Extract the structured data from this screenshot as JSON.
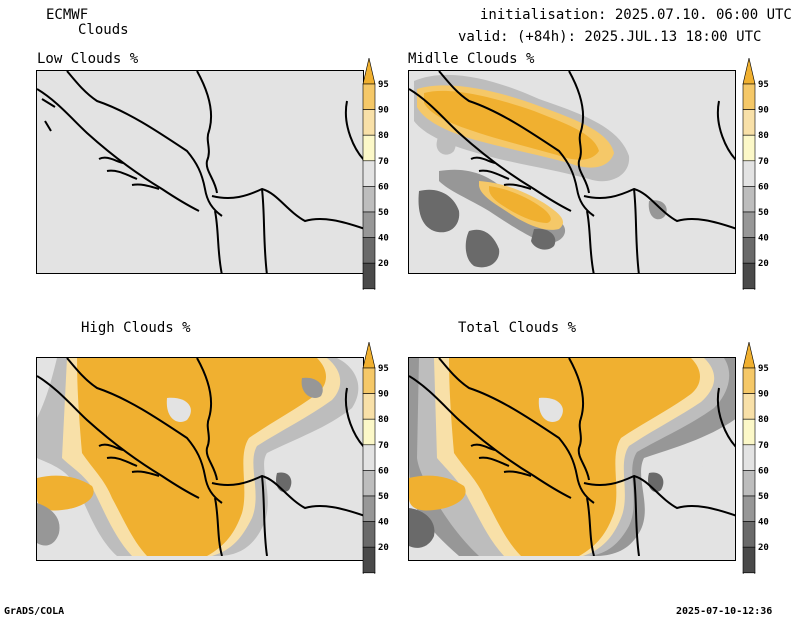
{
  "header": {
    "model": "ECMWF",
    "product": "Clouds",
    "init_line": "initialisation: 2025.07.10. 06:00 UTC",
    "valid_line": "valid: (+84h): 2025.JUL.13 18:00 UTC"
  },
  "panels": [
    {
      "title": "Low Clouds %"
    },
    {
      "title": "Midlle Clouds %"
    },
    {
      "title": "High Clouds %"
    },
    {
      "title": "Total Clouds %"
    }
  ],
  "colorbar": {
    "labels": [
      "95",
      "90",
      "80",
      "70",
      "60",
      "50",
      "40",
      "20"
    ],
    "colors": [
      "#f0b030",
      "#f5c868",
      "#f8e0a8",
      "#fcf8c8",
      "#e3e3e3",
      "#bdbdbd",
      "#979797",
      "#6a6a6a",
      "#4a4a4a",
      "#ffffff"
    ]
  },
  "footer": {
    "left": "GrADS/COLA",
    "right": "2025-07-10-12:36"
  }
}
